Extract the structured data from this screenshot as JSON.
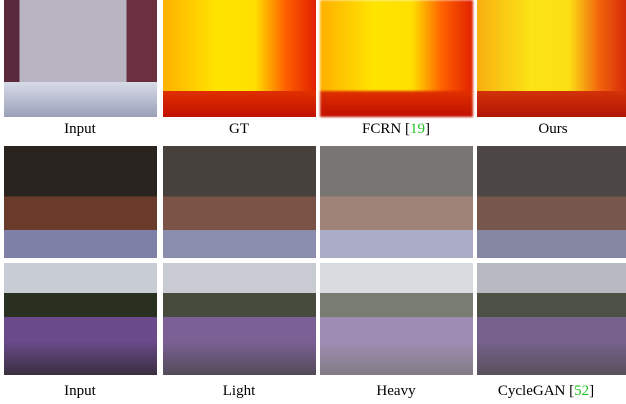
{
  "row1_captions": [
    {
      "label": "Input"
    },
    {
      "label": "GT"
    },
    {
      "label": "FCRN [",
      "cite": "19",
      "end": "]"
    },
    {
      "label": "Ours"
    }
  ],
  "row3_captions": [
    {
      "label": "Input"
    },
    {
      "label": "Light"
    },
    {
      "label": "Heavy"
    },
    {
      "label": "CycleGAN [",
      "cite": "52",
      "end": "]"
    }
  ]
}
